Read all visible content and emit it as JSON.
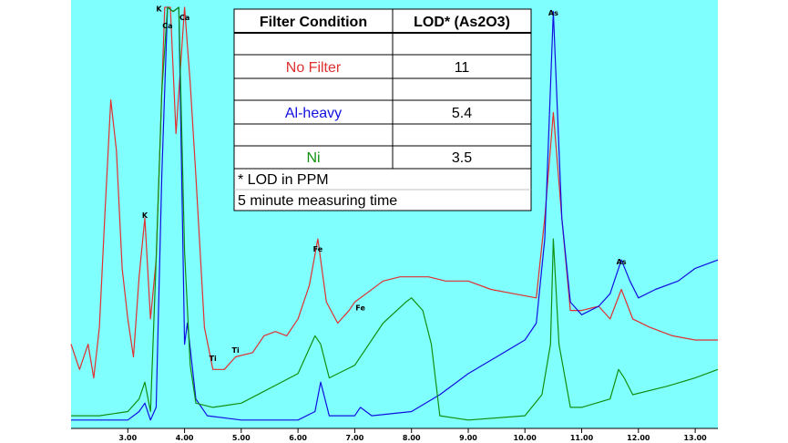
{
  "colors": {
    "background": "#80ffff",
    "no_filter": "#e03030",
    "al_heavy": "#1010e0",
    "ni": "#109010",
    "table_bg": "#ffffff"
  },
  "table": {
    "header": [
      "Filter Condition",
      "LOD* (As2O3)"
    ],
    "rows": [
      {
        "condition": "No Filter",
        "lod": "11",
        "color": "#e03030"
      },
      {
        "condition": "Al-heavy",
        "lod": "5.4",
        "color": "#1010e0"
      },
      {
        "condition": "Ni",
        "lod": "3.5",
        "color": "#109010"
      }
    ],
    "footnote": "* LOD in PPM",
    "note": "5 minute measuring time"
  },
  "chart_data": {
    "type": "line",
    "title": "",
    "xlabel": "",
    "ylabel": "",
    "xlim": [
      2.0,
      13.4
    ],
    "ylim": [
      0,
      100
    ],
    "grid": false,
    "x_ticks": [
      "3.00",
      "4.00",
      "5.00",
      "6.00",
      "7.00",
      "8.00",
      "9.00",
      "10.00",
      "11.00",
      "12.00",
      "13.00"
    ],
    "peak_labels": [
      {
        "text": "K",
        "x": 3.55,
        "y": 99
      },
      {
        "text": "Ca",
        "x": 3.7,
        "y": 95
      },
      {
        "text": "Ca",
        "x": 4.0,
        "y": 97
      },
      {
        "text": "K",
        "x": 3.3,
        "y": 50
      },
      {
        "text": "Ti",
        "x": 4.5,
        "y": 16
      },
      {
        "text": "Ti",
        "x": 4.9,
        "y": 18
      },
      {
        "text": "Fe",
        "x": 6.35,
        "y": 42
      },
      {
        "text": "Fe",
        "x": 7.1,
        "y": 28
      },
      {
        "text": "As",
        "x": 10.5,
        "y": 98
      },
      {
        "text": "As",
        "x": 11.7,
        "y": 39
      }
    ],
    "series": [
      {
        "color": "#e03030",
        "x": [
          2.0,
          2.15,
          2.3,
          2.4,
          2.5,
          2.6,
          2.7,
          2.8,
          2.9,
          3.0,
          3.1,
          3.2,
          3.3,
          3.4,
          3.5,
          3.6,
          3.65,
          3.75,
          3.85,
          4.0,
          4.1,
          4.2,
          4.35,
          4.5,
          4.7,
          4.9,
          5.2,
          5.4,
          5.6,
          5.8,
          6.0,
          6.2,
          6.35,
          6.5,
          6.7,
          6.9,
          7.0,
          7.2,
          7.5,
          7.8,
          8.0,
          8.3,
          8.6,
          9.0,
          9.4,
          9.8,
          10.2,
          10.35,
          10.5,
          10.65,
          10.8,
          11.0,
          11.3,
          11.5,
          11.7,
          11.9,
          12.2,
          12.6,
          13.0,
          13.4
        ],
        "y": [
          20,
          14,
          20,
          12,
          24,
          52,
          78,
          66,
          38,
          26,
          17,
          36,
          50,
          26,
          40,
          80,
          100,
          100,
          70,
          100,
          82,
          60,
          24,
          14,
          14,
          17,
          18,
          22,
          23,
          22,
          26,
          34,
          45,
          30,
          25,
          28,
          30,
          32,
          35,
          36,
          36,
          36,
          35,
          35,
          33,
          32,
          31,
          50,
          75,
          50,
          28,
          28,
          29,
          26,
          33,
          26,
          24,
          22,
          21,
          21
        ]
      },
      {
        "color": "#1010e0",
        "x": [
          2.0,
          2.5,
          3.0,
          3.2,
          3.3,
          3.4,
          3.5,
          3.6,
          3.7,
          3.8,
          3.9,
          4.0,
          4.05,
          4.2,
          4.4,
          5.0,
          6.0,
          6.3,
          6.4,
          6.55,
          7.0,
          7.1,
          7.3,
          8.0,
          8.5,
          9.0,
          9.5,
          10.0,
          10.2,
          10.35,
          10.5,
          10.65,
          10.8,
          11.0,
          11.3,
          11.5,
          11.7,
          11.85,
          12.0,
          12.3,
          12.7,
          13.0,
          13.4
        ],
        "y": [
          2,
          2,
          2,
          4,
          6,
          2,
          5,
          60,
          100,
          99,
          100,
          20,
          25,
          7,
          3,
          2,
          2,
          4,
          11,
          3,
          3,
          5,
          3,
          4,
          8,
          13,
          17,
          21,
          25,
          45,
          99,
          50,
          30,
          27,
          29,
          32,
          40,
          35,
          31,
          33,
          35,
          38,
          40
        ]
      },
      {
        "color": "#109010",
        "x": [
          2.0,
          2.5,
          3.0,
          3.2,
          3.3,
          3.4,
          3.5,
          3.6,
          3.7,
          3.8,
          3.9,
          4.0,
          4.1,
          4.2,
          4.5,
          5.0,
          6.0,
          6.3,
          6.4,
          6.55,
          7.0,
          7.5,
          7.9,
          8.0,
          8.2,
          8.35,
          8.5,
          9.0,
          10.0,
          10.3,
          10.45,
          10.5,
          10.6,
          10.8,
          11.0,
          11.5,
          11.65,
          11.75,
          11.9,
          12.5,
          13.0,
          13.4
        ],
        "y": [
          3,
          3,
          4,
          7,
          11,
          4,
          40,
          80,
          100,
          99,
          100,
          42,
          15,
          6,
          5,
          6,
          13,
          22,
          20,
          12,
          15,
          25,
          30,
          31,
          28,
          20,
          3,
          2,
          3,
          8,
          20,
          45,
          20,
          5,
          5,
          7,
          14,
          12,
          8,
          10,
          12,
          14
        ]
      }
    ]
  }
}
